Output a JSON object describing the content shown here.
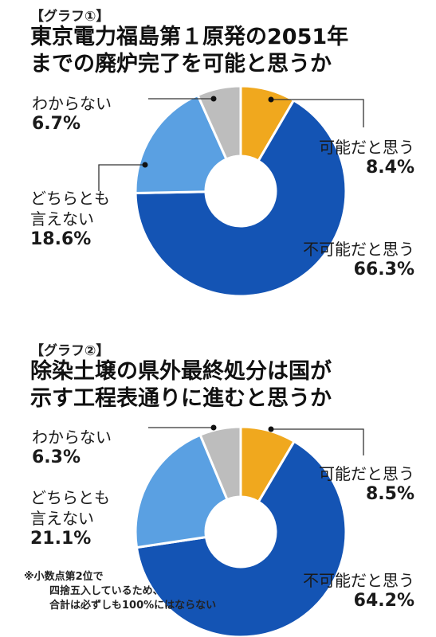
{
  "charts": [
    {
      "tag": "【グラフ①】",
      "title_lines": [
        "東京電力福島第１原発の2051年",
        "までの廃炉完了を可能と思うか"
      ],
      "labels": {
        "wakaranai": "わからない",
        "dochira_1": "どちらとも",
        "dochira_2": "言えない",
        "kanou": "可能だと思う",
        "fukanou": "不可能だと思う"
      },
      "values_text": {
        "wakaranai": "6.7%",
        "dochira": "18.6%",
        "kanou": "8.4%",
        "fukanou": "66.3%"
      }
    },
    {
      "tag": "【グラフ②】",
      "title_lines": [
        "除染土壌の県外最終処分は国が",
        "示す工程表通りに進むと思うか"
      ],
      "labels": {
        "wakaranai": "わからない",
        "dochira_1": "どちらとも",
        "dochira_2": "言えない",
        "kanou": "可能だと思う",
        "fukanou": "不可能だと思う"
      },
      "values_text": {
        "wakaranai": "6.3%",
        "dochira": "21.1%",
        "kanou": "8.5%",
        "fukanou": "64.2%"
      },
      "note_lines": [
        "※小数点第2位で",
        "四捨五入しているため、",
        "合計は必ずしも100%にはならない"
      ]
    }
  ],
  "colors": {
    "kanou": "#F0A81E",
    "fukanou": "#1454B4",
    "dochira": "#5AA0E2",
    "wakaranai": "#BDBDBD",
    "leader": "#333333"
  },
  "chart_data": [
    {
      "type": "pie",
      "donut": true,
      "categories": [
        "可能だと思う",
        "不可能だと思う",
        "どちらとも言えない",
        "わからない"
      ],
      "values": [
        8.4,
        66.3,
        18.6,
        6.7
      ],
      "title": "東京電力福島第１原発の2051年までの廃炉完了を可能と思うか"
    },
    {
      "type": "pie",
      "donut": true,
      "categories": [
        "可能だと思う",
        "不可能だと思う",
        "どちらとも言えない",
        "わからない"
      ],
      "values": [
        8.5,
        64.2,
        21.1,
        6.3
      ],
      "title": "除染土壌の県外最終処分は国が示す工程表通りに進むと思うか"
    }
  ]
}
